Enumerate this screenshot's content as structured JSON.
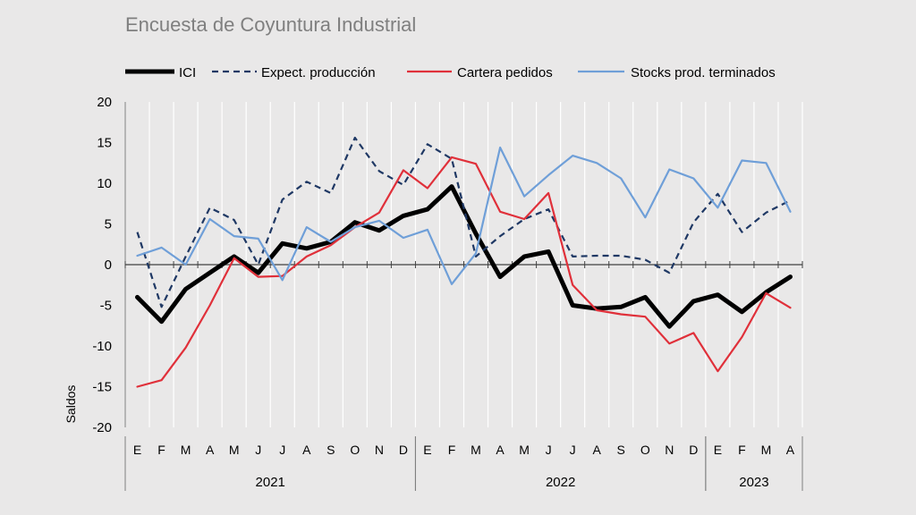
{
  "chart_data": {
    "type": "line",
    "title": "Encuesta de Coyuntura Industrial",
    "ylabel": "Saldos",
    "ylim": [
      -20,
      20
    ],
    "yticks": [
      20,
      15,
      10,
      5,
      0,
      -5,
      -10,
      -15,
      -20
    ],
    "grid": "vertical",
    "legend": "top",
    "months": [
      "E",
      "F",
      "M",
      "A",
      "M",
      "J",
      "J",
      "A",
      "S",
      "O",
      "N",
      "D",
      "E",
      "F",
      "M",
      "A",
      "M",
      "J",
      "J",
      "A",
      "S",
      "O",
      "N",
      "D",
      "E",
      "F",
      "M",
      "A"
    ],
    "years": [
      {
        "label": "2021",
        "start": 0,
        "count": 12
      },
      {
        "label": "2022",
        "start": 12,
        "count": 12
      },
      {
        "label": "2023",
        "start": 24,
        "count": 4
      }
    ],
    "series": [
      {
        "name": "ICI",
        "color": "#000000",
        "style": "solid",
        "width": 5,
        "values": [
          -4.0,
          -7.0,
          -3.0,
          -1.0,
          1.0,
          -1.0,
          2.6,
          2.0,
          2.8,
          5.2,
          4.2,
          6.0,
          6.8,
          9.6,
          3.8,
          -1.5,
          1.0,
          1.6,
          -5.0,
          -5.4,
          -5.2,
          -4.0,
          -7.6,
          -4.5,
          -3.7,
          -5.8,
          -3.4,
          -1.5
        ]
      },
      {
        "name": "Expect. producción",
        "color": "#1f3864",
        "style": "dashed",
        "width": 2.2,
        "values": [
          4.0,
          -5.2,
          1.0,
          7.0,
          5.5,
          0.0,
          8.0,
          10.2,
          8.8,
          15.6,
          11.5,
          9.8,
          14.8,
          13.0,
          1.0,
          3.5,
          5.6,
          6.8,
          1.0,
          1.1,
          1.1,
          0.6,
          -1.0,
          5.2,
          8.7,
          4.0,
          6.4,
          7.9
        ]
      },
      {
        "name": "Cartera pedidos",
        "color": "#e0303a",
        "style": "solid",
        "width": 2.2,
        "values": [
          -15.0,
          -14.2,
          -10.2,
          -5.0,
          0.8,
          -1.5,
          -1.4,
          1.0,
          2.4,
          4.6,
          6.4,
          11.6,
          9.4,
          13.2,
          12.4,
          6.5,
          5.6,
          8.8,
          -2.5,
          -5.6,
          -6.1,
          -6.4,
          -9.7,
          -8.4,
          -13.1,
          -8.9,
          -3.5,
          -5.3
        ]
      },
      {
        "name": "Stocks prod. terminados",
        "color": "#6f9fd8",
        "style": "solid",
        "width": 2.2,
        "values": [
          1.1,
          2.1,
          0.0,
          5.6,
          3.5,
          3.2,
          -1.9,
          4.6,
          2.8,
          4.6,
          5.4,
          3.3,
          4.3,
          -2.4,
          1.4,
          14.4,
          8.4,
          11.0,
          13.4,
          12.5,
          10.6,
          5.8,
          11.7,
          10.6,
          7.0,
          12.8,
          12.5,
          6.5
        ]
      }
    ]
  }
}
